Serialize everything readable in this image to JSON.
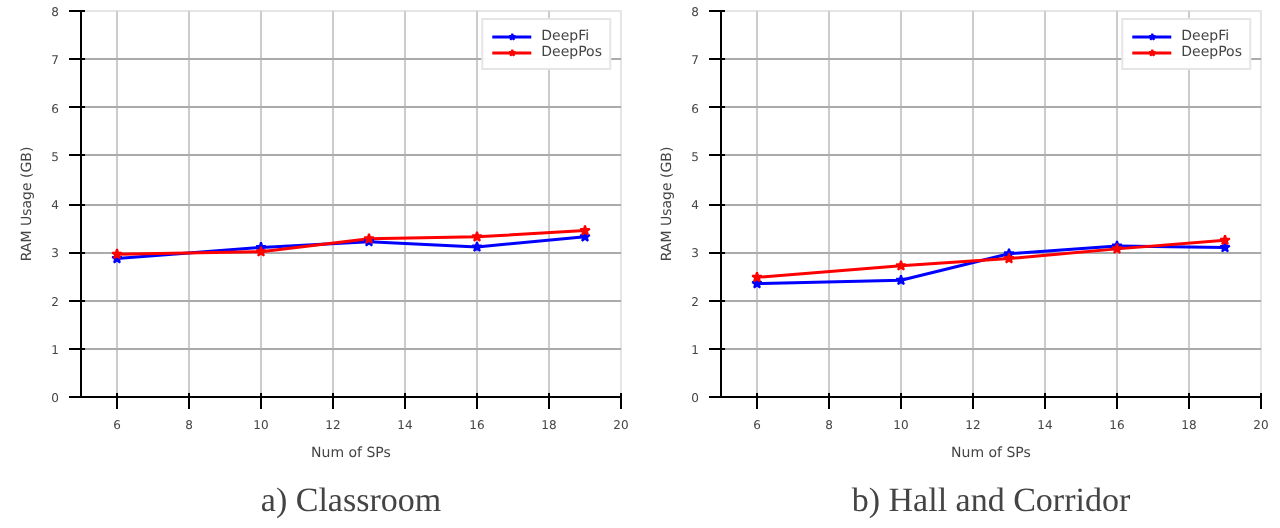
{
  "chart_data": [
    {
      "type": "line",
      "title": "a) Classroom",
      "xlabel": "Num of SPs",
      "ylabel": "RAM Usage (GB)",
      "x": [
        6,
        10,
        13,
        16,
        19
      ],
      "xlim": [
        5,
        20
      ],
      "xticks": [
        6,
        8,
        10,
        12,
        14,
        16,
        18,
        20
      ],
      "ylim": [
        0,
        8
      ],
      "yticks": [
        0,
        1,
        2,
        3,
        4,
        5,
        6,
        7,
        8
      ],
      "grid": true,
      "legend": "top right",
      "marker": "star",
      "line_style": "solid",
      "series": [
        {
          "name": "DeepFi",
          "color": "#0000ff",
          "values": [
            2.87,
            3.1,
            3.22,
            3.11,
            3.32
          ]
        },
        {
          "name": "DeepPos",
          "color": "#ff0000",
          "values": [
            2.96,
            3.01,
            3.28,
            3.32,
            3.45
          ]
        }
      ]
    },
    {
      "type": "line",
      "title": "b) Hall and Corridor",
      "xlabel": "Num of SPs",
      "ylabel": "RAM Usage (GB)",
      "x": [
        6,
        10,
        13,
        16,
        19
      ],
      "xlim": [
        5,
        20
      ],
      "xticks": [
        6,
        8,
        10,
        12,
        14,
        16,
        18,
        20
      ],
      "ylim": [
        0,
        8
      ],
      "yticks": [
        0,
        1,
        2,
        3,
        4,
        5,
        6,
        7,
        8
      ],
      "grid": true,
      "legend": "top right",
      "marker": "star",
      "line_style": "solid",
      "series": [
        {
          "name": "DeepFi",
          "color": "#0000ff",
          "values": [
            2.35,
            2.42,
            2.97,
            3.13,
            3.1
          ]
        },
        {
          "name": "DeepPos",
          "color": "#ff0000",
          "values": [
            2.48,
            2.72,
            2.87,
            3.07,
            3.25
          ]
        }
      ]
    }
  ]
}
